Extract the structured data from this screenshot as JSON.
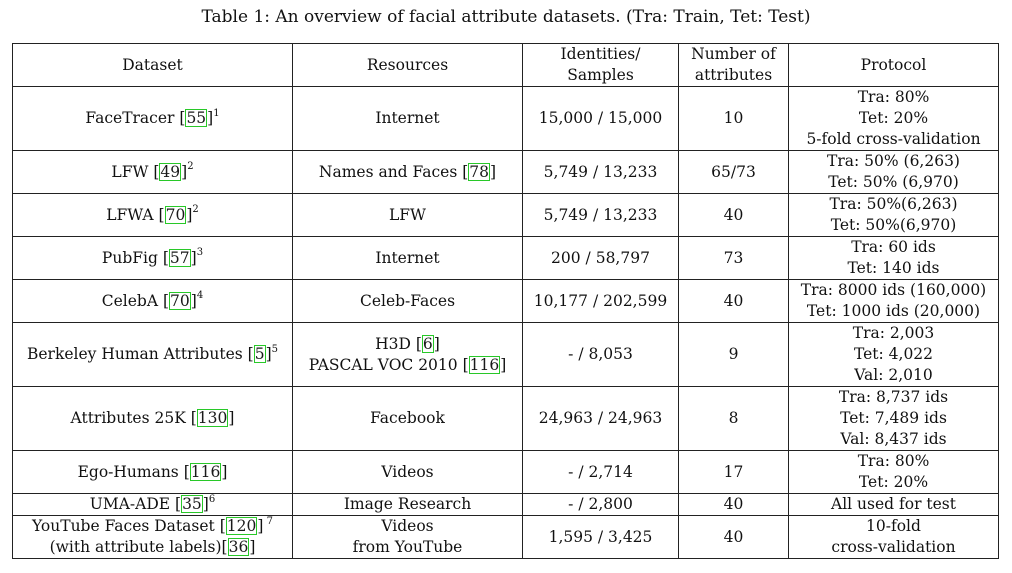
{
  "caption": "Table 1: An overview of facial attribute datasets. (Tra: Train, Tet: Test)",
  "headers": {
    "dataset": "Dataset",
    "resources": "Resources",
    "identities_1": "Identities/",
    "identities_2": "Samples",
    "attrs_1": "Number of",
    "attrs_2": "attributes",
    "protocol": "Protocol"
  },
  "rows": [
    {
      "name": "FaceTracer ",
      "ref": "55",
      "fn": "1",
      "resources": "Internet",
      "samples": "15,000 / 15,000",
      "attributes": "10",
      "protocol": [
        "Tra: 80%",
        "Tet: 20%",
        "5-fold cross-validation"
      ]
    },
    {
      "name": "LFW ",
      "ref": "49",
      "fn": "2",
      "resources": "Names and Faces ",
      "res_ref": "78",
      "samples": "5,749 / 13,233",
      "attributes": "65/73",
      "protocol": [
        "Tra: 50% (6,263)",
        "Tet: 50% (6,970)"
      ]
    },
    {
      "name": "LFWA ",
      "ref": "70",
      "fn": "2",
      "resources": "LFW",
      "samples": "5,749 / 13,233",
      "attributes": "40",
      "protocol": [
        "Tra: 50%(6,263)",
        "Tet: 50%(6,970)"
      ]
    },
    {
      "name": "PubFig ",
      "ref": "57",
      "fn": "3",
      "resources": "Internet",
      "samples": "200 / 58,797",
      "attributes": "73",
      "protocol": [
        "Tra: 60 ids",
        "Tet: 140 ids"
      ]
    },
    {
      "name": "CelebA ",
      "ref": "70",
      "fn": "4",
      "resources": "Celeb-Faces",
      "samples": "10,177 / 202,599",
      "attributes": "40",
      "protocol": [
        "Tra: 8000 ids (160,000)",
        "Tet: 1000 ids (20,000)"
      ]
    },
    {
      "name": "Berkeley Human Attributes ",
      "ref": "5",
      "fn": "5",
      "res_line1": "H3D ",
      "res_ref1": "6",
      "res_line2": "PASCAL VOC 2010 ",
      "res_ref2": "116",
      "samples": "- / 8,053",
      "attributes": "9",
      "protocol": [
        "Tra: 2,003",
        "Tet: 4,022",
        "Val: 2,010"
      ]
    },
    {
      "name": "Attributes 25K ",
      "ref": "130",
      "resources": "Facebook",
      "samples": "24,963 / 24,963",
      "attributes": "8",
      "protocol": [
        "Tra: 8,737 ids",
        "Tet: 7,489 ids",
        "Val: 8,437 ids"
      ]
    },
    {
      "name": "Ego-Humans ",
      "ref": "116",
      "resources": "Videos",
      "samples": "- / 2,714",
      "attributes": "17",
      "protocol": [
        "Tra: 80%",
        "Tet: 20%"
      ]
    },
    {
      "name": "UMA-ADE ",
      "ref": "35",
      "fn": "6",
      "resources": "Image Research",
      "samples": "- / 2,800",
      "attributes": "40",
      "protocol": [
        "All used for test"
      ]
    },
    {
      "name_line1": "YouTube Faces Dataset ",
      "ref": "120",
      "fn": " 7",
      "name_line2": "(with attribute labels)",
      "ref2": "36",
      "res_line1": "Videos",
      "res_line2": "from YouTube",
      "samples": "1,595 / 3,425",
      "attributes": "40",
      "protocol": [
        "10-fold",
        "cross-validation"
      ]
    }
  ]
}
